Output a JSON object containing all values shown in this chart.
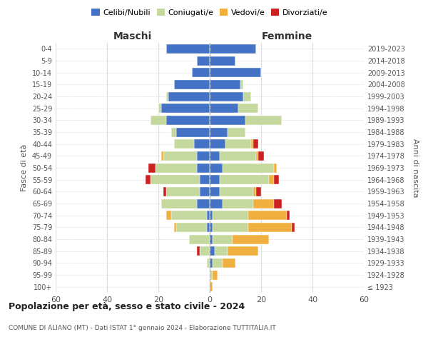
{
  "age_groups": [
    "100+",
    "95-99",
    "90-94",
    "85-89",
    "80-84",
    "75-79",
    "70-74",
    "65-69",
    "60-64",
    "55-59",
    "50-54",
    "45-49",
    "40-44",
    "35-39",
    "30-34",
    "25-29",
    "20-24",
    "15-19",
    "10-14",
    "5-9",
    "0-4"
  ],
  "birth_years": [
    "≤ 1923",
    "1924-1928",
    "1929-1933",
    "1934-1938",
    "1939-1943",
    "1944-1948",
    "1949-1953",
    "1954-1958",
    "1959-1963",
    "1964-1968",
    "1969-1973",
    "1974-1978",
    "1979-1983",
    "1984-1988",
    "1989-1993",
    "1994-1998",
    "1999-2003",
    "2004-2008",
    "2009-2013",
    "2014-2018",
    "2019-2023"
  ],
  "colors": {
    "celibi": "#4472c4",
    "coniugati": "#c5d89d",
    "vedovi": "#f0b040",
    "divorziati": "#cc2222"
  },
  "males": {
    "celibi": [
      0,
      0,
      0,
      0,
      0,
      1,
      1,
      5,
      4,
      4,
      5,
      5,
      6,
      13,
      17,
      19,
      16,
      14,
      7,
      5,
      17
    ],
    "coniugati": [
      0,
      0,
      1,
      4,
      8,
      12,
      14,
      14,
      13,
      19,
      16,
      13,
      8,
      2,
      6,
      1,
      1,
      0,
      0,
      0,
      0
    ],
    "vedovi": [
      0,
      0,
      0,
      0,
      0,
      1,
      2,
      0,
      0,
      0,
      0,
      1,
      0,
      0,
      0,
      0,
      0,
      0,
      0,
      0,
      0
    ],
    "divorziati": [
      0,
      0,
      0,
      1,
      0,
      0,
      0,
      0,
      1,
      2,
      3,
      0,
      0,
      0,
      0,
      0,
      0,
      0,
      0,
      0,
      0
    ]
  },
  "females": {
    "celibi": [
      0,
      0,
      1,
      2,
      1,
      1,
      1,
      5,
      4,
      4,
      5,
      4,
      6,
      7,
      14,
      11,
      13,
      12,
      20,
      10,
      18
    ],
    "coniugati": [
      0,
      1,
      4,
      5,
      8,
      14,
      14,
      12,
      13,
      19,
      20,
      14,
      10,
      7,
      14,
      8,
      3,
      1,
      0,
      0,
      0
    ],
    "vedovi": [
      1,
      2,
      5,
      12,
      14,
      17,
      15,
      8,
      1,
      2,
      1,
      1,
      1,
      0,
      0,
      0,
      0,
      0,
      0,
      0,
      0
    ],
    "divorziati": [
      0,
      0,
      0,
      0,
      0,
      1,
      1,
      3,
      2,
      2,
      0,
      2,
      2,
      0,
      0,
      0,
      0,
      0,
      0,
      0,
      0
    ]
  },
  "xlim": 60,
  "title": "Popolazione per età, sesso e stato civile - 2024",
  "subtitle": "COMUNE DI ALIANO (MT) - Dati ISTAT 1° gennaio 2024 - Elaborazione TUTTITALIA.IT",
  "xlabel_left": "Maschi",
  "xlabel_right": "Femmine",
  "ylabel_left": "Fasce di età",
  "ylabel_right": "Anni di nascita",
  "legend_labels": [
    "Celibi/Nubili",
    "Coniugati/e",
    "Vedovi/e",
    "Divorziati/e"
  ],
  "background_color": "#ffffff",
  "grid_color": "#dddddd"
}
